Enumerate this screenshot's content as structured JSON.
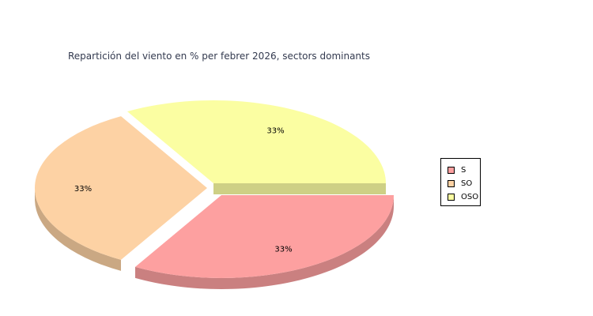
{
  "chart_data": {
    "type": "pie",
    "title": "Repartición del viento en % per febrer 2026, sectors dominants",
    "categories": [
      "S",
      "SO",
      "OSO"
    ],
    "values": [
      33.3,
      33.3,
      33.3
    ],
    "data_labels": [
      "33%",
      "33%",
      "33%"
    ],
    "colors": [
      "#fda0a0",
      "#fdd2a4",
      "#fbfea2"
    ],
    "legend": "right"
  }
}
